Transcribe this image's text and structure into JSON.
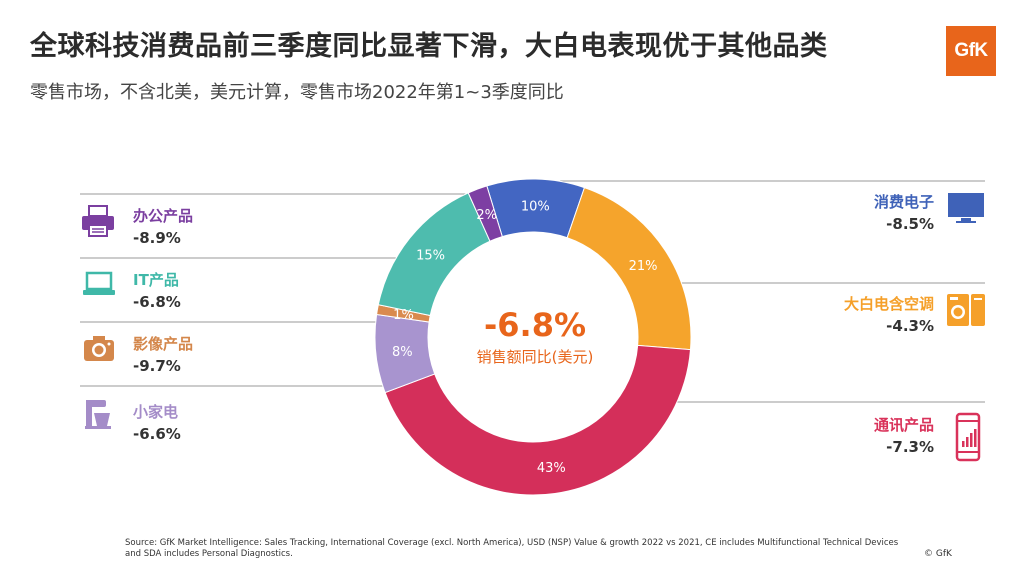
{
  "header": {
    "title": "全球科技消费品前三季度同比显著下滑，大白电表现优于其他品类",
    "subtitle": "零售市场，不含北美，美元计算，零售市场2022年第1~3季度同比",
    "logo": "GfK"
  },
  "center": {
    "value": "-6.8%",
    "label": "销售额同比(美元)"
  },
  "categories": [
    {
      "name": "办公产品",
      "growth": "-8.9%",
      "color": "#7b3fa0",
      "icon": "printer-icon"
    },
    {
      "name": "IT产品",
      "growth": "-6.8%",
      "color": "#3fb8a8",
      "icon": "laptop-icon"
    },
    {
      "name": "影像产品",
      "growth": "-9.7%",
      "color": "#d4874b",
      "icon": "camera-icon"
    },
    {
      "name": "小家电",
      "growth": "-6.6%",
      "color": "#a48cc8",
      "icon": "mixer-icon"
    },
    {
      "name": "消费电子",
      "growth": "-8.5%",
      "color": "#3f62b8",
      "icon": "tv-icon"
    },
    {
      "name": "大白电含空调",
      "growth": "-4.3%",
      "color": "#f5a02a",
      "icon": "washer-icon"
    },
    {
      "name": "通讯产品",
      "growth": "-7.3%",
      "color": "#d9325a",
      "icon": "phone-icon"
    }
  ],
  "chart_data": {
    "type": "pie",
    "donut": true,
    "slices": [
      {
        "category": "消费电子",
        "value": 10,
        "label": "10%",
        "color": "#4366c2"
      },
      {
        "category": "大白电含空调",
        "value": 21,
        "label": "21%",
        "color": "#f5a42c"
      },
      {
        "category": "通讯产品",
        "value": 43,
        "label": "43%",
        "color": "#d42f5a"
      },
      {
        "category": "小家电",
        "value": 8,
        "label": "8%",
        "color": "#a894cf"
      },
      {
        "category": "影像产品",
        "value": 1,
        "label": "1%",
        "color": "#d98a4e"
      },
      {
        "category": "IT产品",
        "value": 15,
        "label": "15%",
        "color": "#4ebcae"
      },
      {
        "category": "办公产品",
        "value": 2,
        "label": "2%",
        "color": "#7d3fa3"
      }
    ]
  },
  "footer": {
    "source": "Source: GfK Market Intelligence: Sales Tracking, International Coverage (excl. North America), USD (NSP) Value & growth 2022 vs 2021, CE includes Multifunctional Technical Devices and SDA includes Personal Diagnostics.",
    "copyright": "© GfK"
  }
}
